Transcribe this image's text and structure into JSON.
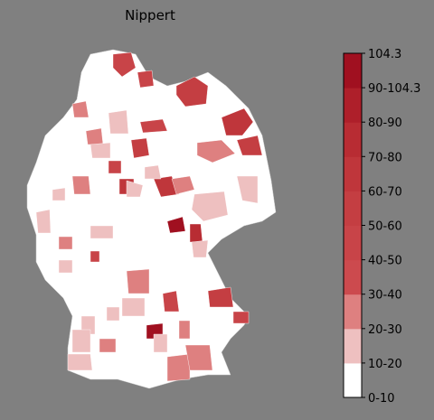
{
  "title": "Nippert",
  "colorbar": {
    "labels": [
      "0-10",
      "10-20",
      "20-30",
      "30-40",
      "40-50",
      "50-60",
      "60-70",
      "70-80",
      "80-90",
      "90-104.3",
      "104.3"
    ],
    "colors": [
      "#ffffff",
      "#eec0c0",
      "#de8080",
      "#cc4a4e",
      "#c84448",
      "#c43e42",
      "#bf363b",
      "#b82c33",
      "#ae1f2a",
      "#a01020"
    ]
  }
}
